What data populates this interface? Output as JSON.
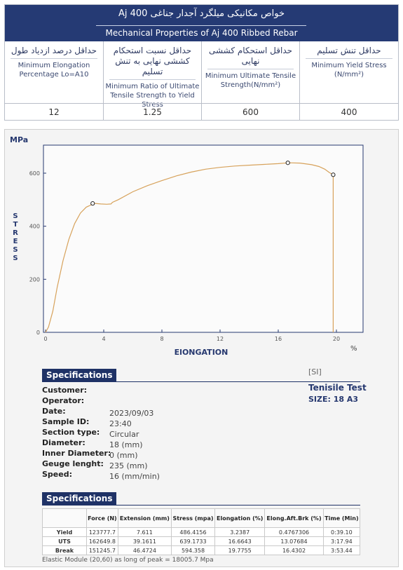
{
  "properties": {
    "title_fa": "خواص مکانیکی میلگرد آجدار جناغی Aj 400",
    "title_en": "Mechanical Properties of Aj 400 Ribbed Rebar",
    "columns": [
      {
        "fa": "حداقل درصد ازدیاد طول",
        "en": "Minimum Elongation Percentage Lo=A10",
        "value": "12"
      },
      {
        "fa": "حداقل نسبت استحکام کششی نهایی به تنش تسلیم",
        "en": "Minimum Ratio of Ultimate Tensile Strength to Yield Stress",
        "value": "1.25"
      },
      {
        "fa": "حداقل استحکام کششی نهایی",
        "en": "Minimum Ultimate Tensile Strength(N/mm²)",
        "value": "600"
      },
      {
        "fa": "حداقل تنش تسلیم",
        "en": "Minimum Yield Stress (N/mm²)",
        "value": "400"
      }
    ]
  },
  "chart_data": {
    "type": "line",
    "ylabel_unit": "MPa",
    "ylabel": "STRESS",
    "xlabel": "ElONGATION",
    "xlabel_unit": "%",
    "xlim": [
      0,
      22
    ],
    "ylim": [
      0,
      700
    ],
    "x_ticks": [
      0,
      4,
      8,
      12,
      16,
      20
    ],
    "y_ticks": [
      0,
      200,
      400,
      600
    ],
    "grid": false,
    "line_color": "#d7a25b",
    "series": [
      {
        "x": [
          0,
          0.2,
          0.5,
          0.8,
          1.2,
          1.6,
          2.0,
          2.4,
          2.8,
          3.2,
          3.4,
          3.8,
          4.2,
          4.5,
          4.6,
          5.0,
          6,
          7,
          8,
          9,
          10,
          11,
          12,
          13,
          14,
          15,
          16,
          16.7,
          17.5,
          18.3,
          18.8,
          19.2,
          19.5,
          19.78,
          19.78
        ],
        "y": [
          0,
          20,
          80,
          170,
          270,
          350,
          410,
          450,
          472,
          482,
          486,
          484,
          483,
          484,
          490,
          500,
          530,
          553,
          572,
          590,
          604,
          615,
          622,
          627,
          630,
          633,
          636,
          639,
          638,
          632,
          625,
          615,
          603,
          594,
          0
        ]
      }
    ],
    "markers": [
      {
        "x": 3.24,
        "y": 486,
        "label": "Yield"
      },
      {
        "x": 16.66,
        "y": 639,
        "label": "UTS"
      },
      {
        "x": 19.78,
        "y": 594,
        "label": "Break"
      }
    ]
  },
  "report": {
    "specs_heading": "Specifications",
    "si_tag": "[SI]",
    "test_title": "Tenisile Test",
    "size_label": "SIZE: 18 A3",
    "fields": [
      {
        "label": "Customer:",
        "value": ""
      },
      {
        "label": "Operator:",
        "value": ""
      },
      {
        "label": "Date:",
        "value": "2023/09/03"
      },
      {
        "label": "Sample ID:",
        "value": "23:40"
      },
      {
        "label": "Section type:",
        "value": "Circular"
      },
      {
        "label": "Diameter:",
        "value": "18 (mm)"
      },
      {
        "label": "Inner Diameter:",
        "value": "0 (mm)"
      },
      {
        "label": "Geuge lenght:",
        "value": "235 (mm)"
      },
      {
        "label": "Speed:",
        "value": "16 (mm/min)"
      }
    ],
    "results_heading": "Specifications",
    "results": {
      "headers": [
        "",
        "Force (N)",
        "Extension (mm)",
        "Stress (mpa)",
        "Elongation (%)",
        "Elong.Aft.Brk (%)",
        "Time (Min)"
      ],
      "rows": [
        [
          "Yield",
          "123777.7",
          "7.611",
          "486.4156",
          "3.2387",
          "0.4767306",
          "0:39.10"
        ],
        [
          "UTS",
          "162649.8",
          "39.1611",
          "639.1733",
          "16.6643",
          "13.07684",
          "3:17.94"
        ],
        [
          "Break",
          "151245.7",
          "46.4724",
          "594.358",
          "19.7755",
          "16.4302",
          "3:53.44"
        ]
      ]
    },
    "elastic_note": "Elastic Module (20,60) as long of peak = 18005.7 Mpa"
  }
}
